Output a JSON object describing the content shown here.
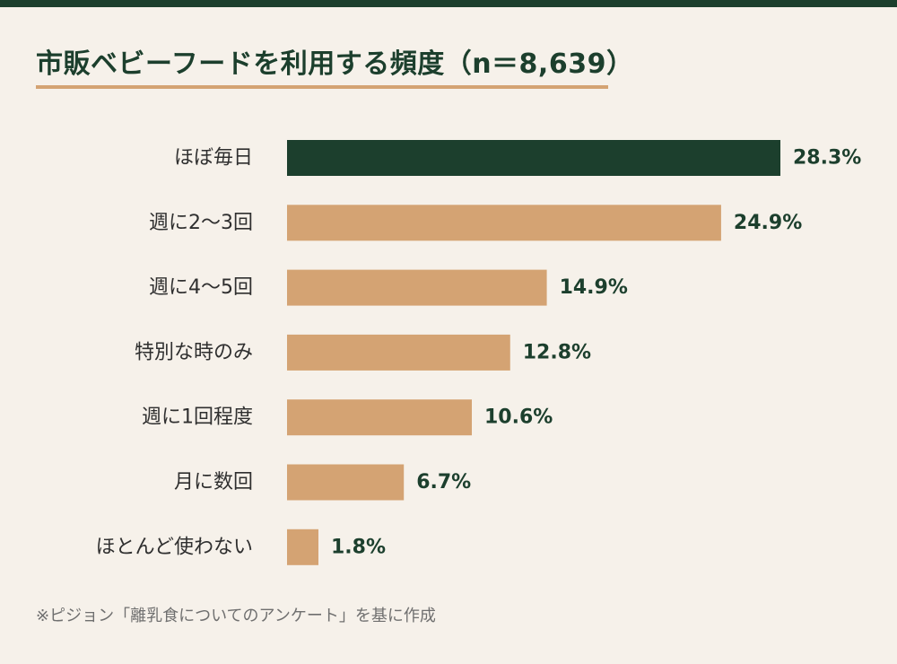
{
  "title": "市販ベビーフードを利用する頻度（n＝8,639）",
  "footnote": "※ピジョン「離乳食についてのアンケート」を基に作成",
  "colors": {
    "background": "#f6f1ea",
    "accent": "#1c3f2d",
    "bar_highlight": "#1c3f2d",
    "bar_default": "#d4a373",
    "title_underline": "#d4a373"
  },
  "chart_data": {
    "type": "bar",
    "orientation": "horizontal",
    "title": "市販ベビーフードを利用する頻度（n＝8,639）",
    "xlabel": "",
    "ylabel": "",
    "unit": "%",
    "categories": [
      "ほぼ毎日",
      "週に2〜3回",
      "週に4〜5回",
      "特別な時のみ",
      "週に1回程度",
      "月に数回",
      "ほとんど使わない"
    ],
    "values": [
      28.3,
      24.9,
      14.9,
      12.8,
      10.6,
      6.7,
      1.8
    ],
    "value_labels": [
      "28.3%",
      "24.9%",
      "14.9%",
      "12.8%",
      "10.6%",
      "6.7%",
      "1.8%"
    ],
    "highlight_index": 0,
    "grid": false,
    "legend": "none"
  }
}
